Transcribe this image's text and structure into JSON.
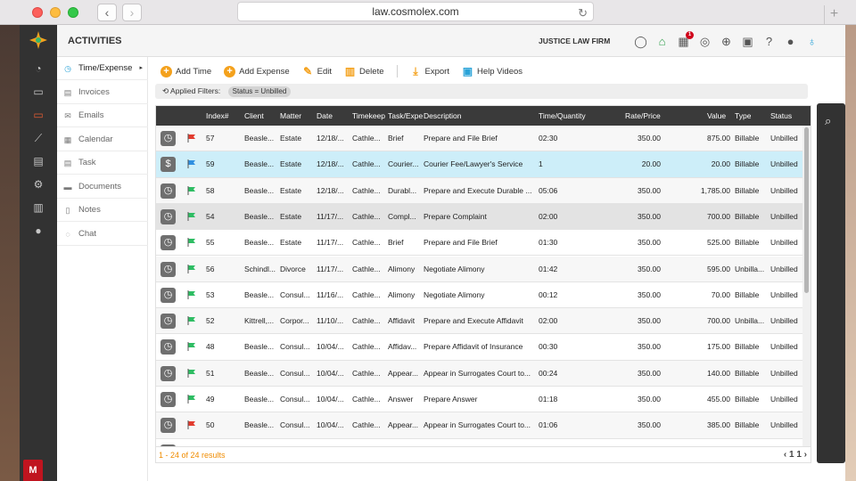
{
  "browser": {
    "url": "law.cosmolex.com"
  },
  "header": {
    "title": "ACTIVITIES",
    "firm": "JUSTICE LAW FIRM",
    "notification_badge": "1",
    "icons": [
      "chat-icon",
      "bank-icon",
      "calculator-icon",
      "timer-icon",
      "plus-circle-icon",
      "film-icon",
      "help-icon",
      "user-icon",
      "lightbulb-icon"
    ]
  },
  "rail": [
    "dashboard-icon",
    "folder-icon",
    "laptop-icon",
    "chart-icon",
    "book-icon",
    "settings-icon",
    "report-icon",
    "person-icon"
  ],
  "subnav": [
    {
      "label": "Time/Expense",
      "icon": "clock-icon"
    },
    {
      "label": "Invoices",
      "icon": "invoice-icon"
    },
    {
      "label": "Emails",
      "icon": "mail-icon"
    },
    {
      "label": "Calendar",
      "icon": "calendar-icon"
    },
    {
      "label": "Task",
      "icon": "task-icon"
    },
    {
      "label": "Documents",
      "icon": "folder-icon"
    },
    {
      "label": "Notes",
      "icon": "note-icon"
    },
    {
      "label": "Chat",
      "icon": "chat-icon"
    }
  ],
  "toolbar": {
    "add_time": "Add Time",
    "add_expense": "Add Expense",
    "edit": "Edit",
    "delete": "Delete",
    "export": "Export",
    "help_videos": "Help Videos"
  },
  "filters": {
    "label": "Applied Filters:",
    "chip": "Status = Unbilled"
  },
  "columns": [
    "Index#",
    "Client",
    "Matter",
    "Date",
    "Timekeep",
    "Task/Expe",
    "Description",
    "Time/Quantity",
    "Rate/Price",
    "Value",
    "Type",
    "Status"
  ],
  "rows": [
    {
      "kind": "time",
      "flag": "red",
      "index": "57",
      "client": "Beasle...",
      "matter": "Estate",
      "date": "12/18/...",
      "tk": "Cathle...",
      "task": "Brief",
      "desc": "Prepare and File Brief",
      "qty": "02:30",
      "rate": "350.00",
      "value": "875.00",
      "type": "Billable",
      "status": "Unbilled",
      "style": "alt"
    },
    {
      "kind": "expense",
      "flag": "blue",
      "index": "59",
      "client": "Beasle...",
      "matter": "Estate",
      "date": "12/18/...",
      "tk": "Cathle...",
      "task": "Courier...",
      "desc": "Courier Fee/Lawyer's Service",
      "qty": "1",
      "rate": "20.00",
      "value": "20.00",
      "type": "Billable",
      "status": "Unbilled",
      "style": "hl"
    },
    {
      "kind": "time",
      "flag": "green",
      "index": "58",
      "client": "Beasle...",
      "matter": "Estate",
      "date": "12/18/...",
      "tk": "Cathle...",
      "task": "Durabl...",
      "desc": "Prepare and Execute Durable ...",
      "qty": "05:06",
      "rate": "350.00",
      "value": "1,785.00",
      "type": "Billable",
      "status": "Unbilled",
      "style": "alt"
    },
    {
      "kind": "time",
      "flag": "green",
      "index": "54",
      "client": "Beasle...",
      "matter": "Estate",
      "date": "11/17/...",
      "tk": "Cathle...",
      "task": "Compl...",
      "desc": "Prepare Complaint",
      "qty": "02:00",
      "rate": "350.00",
      "value": "700.00",
      "type": "Billable",
      "status": "Unbilled",
      "style": "sel"
    },
    {
      "kind": "time",
      "flag": "green",
      "index": "55",
      "client": "Beasle...",
      "matter": "Estate",
      "date": "11/17/...",
      "tk": "Cathle...",
      "task": "Brief",
      "desc": "Prepare and File Brief",
      "qty": "01:30",
      "rate": "350.00",
      "value": "525.00",
      "type": "Billable",
      "status": "Unbilled",
      "style": ""
    },
    {
      "kind": "time",
      "flag": "green",
      "index": "56",
      "client": "Schindl...",
      "matter": "Divorce",
      "date": "11/17/...",
      "tk": "Cathle...",
      "task": "Alimony",
      "desc": "Negotiate Alimony",
      "qty": "01:42",
      "rate": "350.00",
      "value": "595.00",
      "type": "Unbilla...",
      "status": "Unbilled",
      "style": "alt"
    },
    {
      "kind": "time",
      "flag": "green",
      "index": "53",
      "client": "Beasle...",
      "matter": "Consul...",
      "date": "11/16/...",
      "tk": "Cathle...",
      "task": "Alimony",
      "desc": "Negotiate Alimony",
      "qty": "00:12",
      "rate": "350.00",
      "value": "70.00",
      "type": "Billable",
      "status": "Unbilled",
      "style": ""
    },
    {
      "kind": "time",
      "flag": "green",
      "index": "52",
      "client": "Kittrell,...",
      "matter": "Corpor...",
      "date": "11/10/...",
      "tk": "Cathle...",
      "task": "Affidavit",
      "desc": "Prepare and Execute Affidavit",
      "qty": "02:00",
      "rate": "350.00",
      "value": "700.00",
      "type": "Unbilla...",
      "status": "Unbilled",
      "style": "alt"
    },
    {
      "kind": "time",
      "flag": "green",
      "index": "48",
      "client": "Beasle...",
      "matter": "Consul...",
      "date": "10/04/...",
      "tk": "Cathle...",
      "task": "Affidav...",
      "desc": "Prepare Affidavit of Insurance",
      "qty": "00:30",
      "rate": "350.00",
      "value": "175.00",
      "type": "Billable",
      "status": "Unbilled",
      "style": ""
    },
    {
      "kind": "time",
      "flag": "green",
      "index": "51",
      "client": "Beasle...",
      "matter": "Consul...",
      "date": "10/04/...",
      "tk": "Cathle...",
      "task": "Appear...",
      "desc": "Appear in Surrogates Court to...",
      "qty": "00:24",
      "rate": "350.00",
      "value": "140.00",
      "type": "Billable",
      "status": "Unbilled",
      "style": "alt"
    },
    {
      "kind": "time",
      "flag": "green",
      "index": "49",
      "client": "Beasle...",
      "matter": "Consul...",
      "date": "10/04/...",
      "tk": "Cathle...",
      "task": "Answer",
      "desc": "Prepare Answer",
      "qty": "01:18",
      "rate": "350.00",
      "value": "455.00",
      "type": "Billable",
      "status": "Unbilled",
      "style": ""
    },
    {
      "kind": "time",
      "flag": "red",
      "index": "50",
      "client": "Beasle...",
      "matter": "Consul...",
      "date": "10/04/...",
      "tk": "Cathle...",
      "task": "Appear...",
      "desc": "Appear in Surrogates Court to...",
      "qty": "01:06",
      "rate": "350.00",
      "value": "385.00",
      "type": "Billable",
      "status": "Unbilled",
      "style": "alt"
    },
    {
      "kind": "time",
      "flag": "green",
      "index": "",
      "client": "",
      "matter": "",
      "date": "",
      "tk": "",
      "task": "",
      "desc": "",
      "qty": "",
      "rate": "",
      "value": "",
      "type": "",
      "status": "",
      "style": ""
    }
  ],
  "footer": {
    "results": "1 - 24 of 24 results",
    "page": "1",
    "total_pages": "1"
  },
  "colors": {
    "accent": "#f4a11c",
    "highlight": "#cdeef9",
    "flag_red": "#e23b2e",
    "flag_green": "#2ebd63",
    "flag_blue": "#2f8fe0"
  }
}
